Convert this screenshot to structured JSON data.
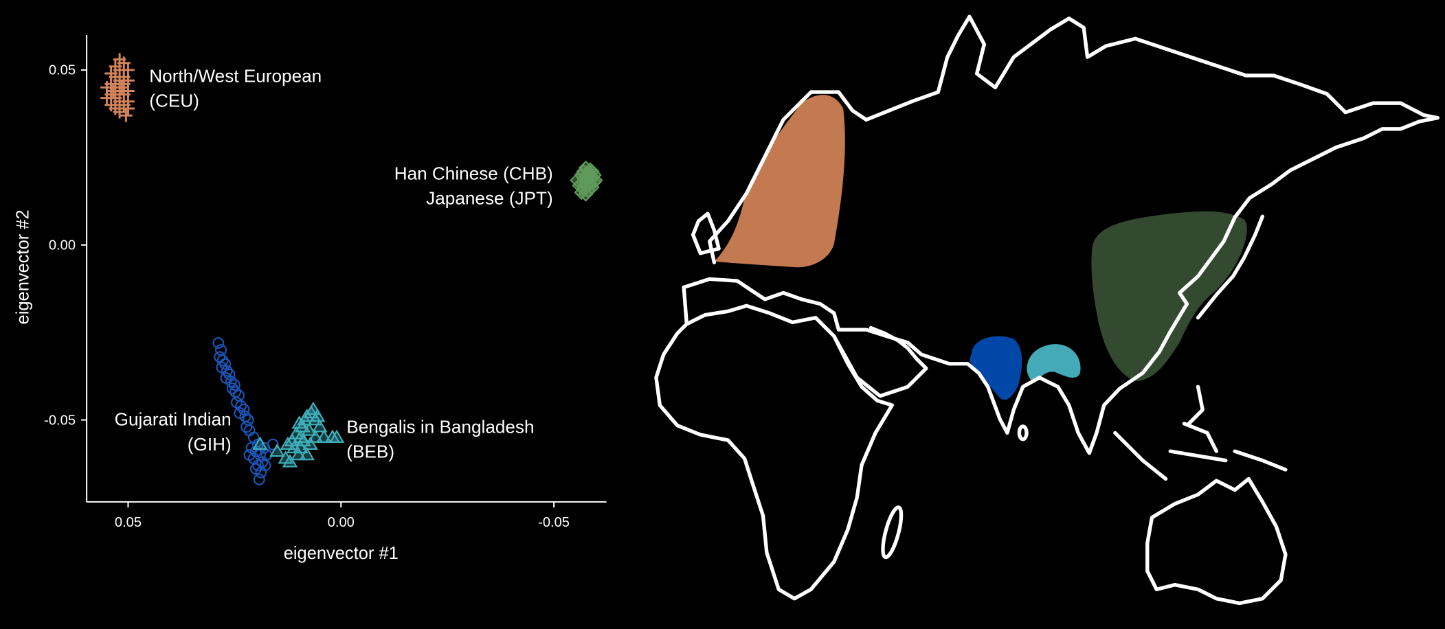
{
  "chart_data": {
    "type": "scatter",
    "xlabel": "eigenvector #1",
    "ylabel": "eigenvector #2",
    "x_reversed": true,
    "xlim": [
      0.0596,
      -0.063
    ],
    "ylim": [
      -0.0725,
      0.06
    ],
    "x_ticks": [
      {
        "value": 0.05,
        "label": "0.05"
      },
      {
        "value": 0.0,
        "label": "0.00"
      },
      {
        "value": -0.05,
        "label": "-0.05"
      }
    ],
    "y_ticks": [
      {
        "value": 0.05,
        "label": "0.05"
      },
      {
        "value": 0.0,
        "label": "0.00"
      },
      {
        "value": -0.05,
        "label": "-0.05"
      }
    ],
    "grid": false,
    "series": [
      {
        "name": "North/West European (CEU)",
        "label_lines": [
          "North/West European",
          "(CEU)"
        ],
        "marker": "plus",
        "color": "#d4845a",
        "points": [
          [
            0.052,
            0.053
          ],
          [
            0.051,
            0.052
          ],
          [
            0.053,
            0.051
          ],
          [
            0.05,
            0.05
          ],
          [
            0.052,
            0.05
          ],
          [
            0.054,
            0.049
          ],
          [
            0.051,
            0.048
          ],
          [
            0.053,
            0.048
          ],
          [
            0.05,
            0.047
          ],
          [
            0.052,
            0.047
          ],
          [
            0.054,
            0.046
          ],
          [
            0.051,
            0.046
          ],
          [
            0.053,
            0.045
          ],
          [
            0.055,
            0.045
          ],
          [
            0.05,
            0.044
          ],
          [
            0.052,
            0.044
          ],
          [
            0.054,
            0.043
          ],
          [
            0.051,
            0.043
          ],
          [
            0.053,
            0.042
          ],
          [
            0.055,
            0.042
          ],
          [
            0.052,
            0.041
          ],
          [
            0.05,
            0.041
          ],
          [
            0.054,
            0.04
          ],
          [
            0.051,
            0.04
          ],
          [
            0.053,
            0.039
          ],
          [
            0.05,
            0.039
          ],
          [
            0.052,
            0.038
          ],
          [
            0.0505,
            0.037
          ],
          [
            0.0535,
            0.044
          ],
          [
            0.0515,
            0.045
          ]
        ]
      },
      {
        "name": "Han Chinese (CHB)",
        "label_lines": [
          "Han Chinese (CHB)",
          "Japanese (JPT)"
        ],
        "marker": "diamond",
        "color": "#5f9a5a",
        "points": [
          [
            -0.0575,
            0.022
          ],
          [
            -0.0585,
            0.0215
          ],
          [
            -0.057,
            0.021
          ],
          [
            -0.059,
            0.021
          ],
          [
            -0.058,
            0.0205
          ],
          [
            -0.0565,
            0.02
          ],
          [
            -0.0595,
            0.02
          ],
          [
            -0.058,
            0.0195
          ],
          [
            -0.057,
            0.019
          ],
          [
            -0.0588,
            0.019
          ],
          [
            -0.0555,
            0.0185
          ],
          [
            -0.0578,
            0.0185
          ],
          [
            -0.0595,
            0.018
          ],
          [
            -0.0568,
            0.018
          ],
          [
            -0.0585,
            0.0175
          ],
          [
            -0.056,
            0.017
          ],
          [
            -0.0575,
            0.017
          ],
          [
            -0.059,
            0.0165
          ],
          [
            -0.057,
            0.016
          ],
          [
            -0.058,
            0.0155
          ],
          [
            -0.0565,
            0.015
          ],
          [
            -0.0575,
            0.0145
          ],
          [
            -0.0598,
            0.0185
          ],
          [
            -0.0582,
            0.0205
          ]
        ]
      },
      {
        "name": "Gujarati Indian (GIH)",
        "label_lines": [
          "Gujarati Indian",
          "(GIH)"
        ],
        "marker": "circle",
        "color": "#1a55b8",
        "points": [
          [
            0.0288,
            -0.028
          ],
          [
            0.0282,
            -0.03
          ],
          [
            0.0285,
            -0.032
          ],
          [
            0.0278,
            -0.033
          ],
          [
            0.0272,
            -0.034
          ],
          [
            0.028,
            -0.035
          ],
          [
            0.0268,
            -0.036
          ],
          [
            0.0262,
            -0.037
          ],
          [
            0.027,
            -0.038
          ],
          [
            0.0258,
            -0.039
          ],
          [
            0.025,
            -0.04
          ],
          [
            0.0255,
            -0.041
          ],
          [
            0.0248,
            -0.042
          ],
          [
            0.024,
            -0.043
          ],
          [
            0.0245,
            -0.045
          ],
          [
            0.0235,
            -0.046
          ],
          [
            0.0228,
            -0.047
          ],
          [
            0.0238,
            -0.048
          ],
          [
            0.0225,
            -0.049
          ],
          [
            0.0218,
            -0.05
          ],
          [
            0.0222,
            -0.052
          ],
          [
            0.0215,
            -0.053
          ],
          [
            0.0205,
            -0.055
          ],
          [
            0.0195,
            -0.057
          ],
          [
            0.021,
            -0.058
          ],
          [
            0.018,
            -0.058
          ],
          [
            0.02,
            -0.059
          ],
          [
            0.019,
            -0.06
          ],
          [
            0.0215,
            -0.06
          ],
          [
            0.0175,
            -0.06
          ],
          [
            0.0205,
            -0.061
          ],
          [
            0.0185,
            -0.062
          ],
          [
            0.0195,
            -0.063
          ],
          [
            0.0178,
            -0.063
          ],
          [
            0.02,
            -0.064
          ],
          [
            0.0188,
            -0.065
          ],
          [
            0.0192,
            -0.067
          ],
          [
            0.016,
            -0.057
          ]
        ]
      },
      {
        "name": "Bengalis in Bangladesh (BEB)",
        "label_lines": [
          "Bengalis in Bangladesh",
          "(BEB)"
        ],
        "marker": "triangle",
        "color": "#3fb0bb",
        "points": [
          [
            0.015,
            -0.059
          ],
          [
            0.013,
            -0.061
          ],
          [
            0.012,
            -0.062
          ],
          [
            0.011,
            -0.058
          ],
          [
            0.01,
            -0.06
          ],
          [
            0.0095,
            -0.055
          ],
          [
            0.0105,
            -0.054
          ],
          [
            0.009,
            -0.052
          ],
          [
            0.0085,
            -0.05
          ],
          [
            0.008,
            -0.049
          ],
          [
            0.007,
            -0.048
          ],
          [
            0.0065,
            -0.047
          ],
          [
            0.0075,
            -0.053
          ],
          [
            0.006,
            -0.05
          ],
          [
            0.005,
            -0.052
          ],
          [
            0.0088,
            -0.056
          ],
          [
            0.0115,
            -0.056
          ],
          [
            0.0072,
            -0.057
          ],
          [
            0.006,
            -0.055
          ],
          [
            0.004,
            -0.055
          ],
          [
            0.002,
            -0.055
          ],
          [
            0.001,
            -0.055
          ],
          [
            0.0095,
            -0.058
          ],
          [
            0.008,
            -0.06
          ],
          [
            0.0125,
            -0.057
          ],
          [
            0.0098,
            -0.051
          ],
          [
            0.0055,
            -0.049
          ],
          [
            0.019,
            -0.057
          ]
        ]
      }
    ]
  },
  "map": {
    "regions": [
      {
        "name": "CEU",
        "color": "#c47a50"
      },
      {
        "name": "CHB-JPT",
        "color": "#344a30"
      },
      {
        "name": "GIH",
        "color": "#0047a8"
      },
      {
        "name": "BEB",
        "color": "#45aab8"
      }
    ],
    "outline_color": "#ffffff"
  }
}
